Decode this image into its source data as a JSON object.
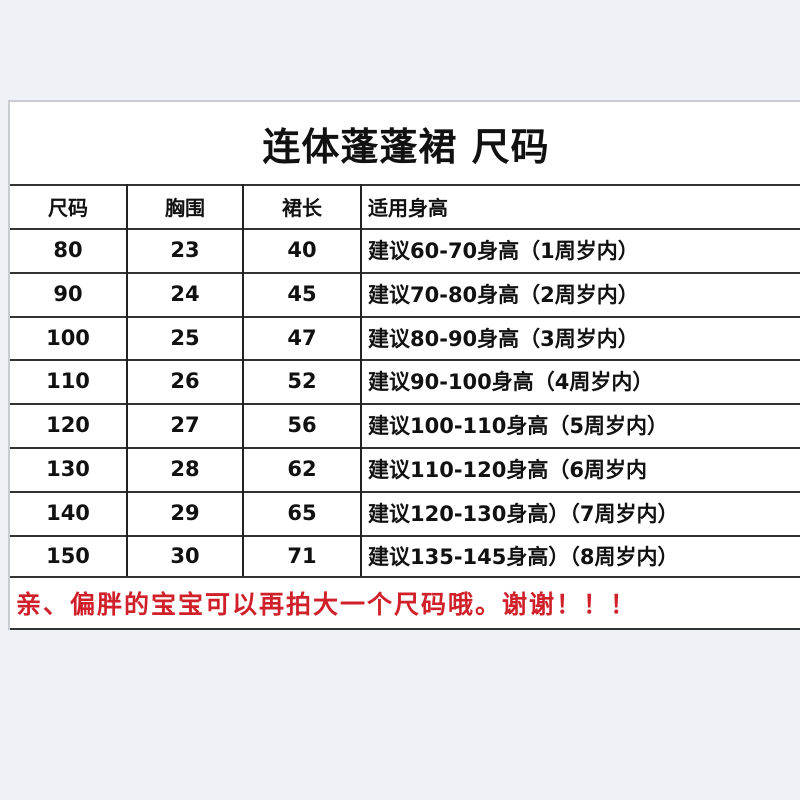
{
  "title": "连体蓬蓬裙 尺码",
  "headers": [
    "尺码",
    "胸围",
    "裙长",
    "适用身高"
  ],
  "rows": [
    [
      "80",
      "23",
      "40",
      "建议60-70身高（1周岁内）"
    ],
    [
      "90",
      "24",
      "45",
      "建议70-80身高（2周岁内）"
    ],
    [
      "100",
      "25",
      "47",
      "建议80-90身高（3周岁内）"
    ],
    [
      "110",
      "26",
      "52",
      "建议90-100身高（4周岁内）"
    ],
    [
      "120",
      "27",
      "56",
      "建议100-110身高（5周岁内）"
    ],
    [
      "130",
      "28",
      "62",
      "建议110-120身高（6周岁内"
    ],
    [
      "140",
      "29",
      "65",
      "建议120-130身高）（7周岁内）"
    ],
    [
      "150",
      "30",
      "71",
      "建议135-145身高）（8周岁内）"
    ]
  ],
  "note": "亲、偏胖的宝宝可以再拍大一个尺码哦。谢谢！！！",
  "colors": {
    "note": "#d0202a",
    "background": "#eef1f6"
  }
}
